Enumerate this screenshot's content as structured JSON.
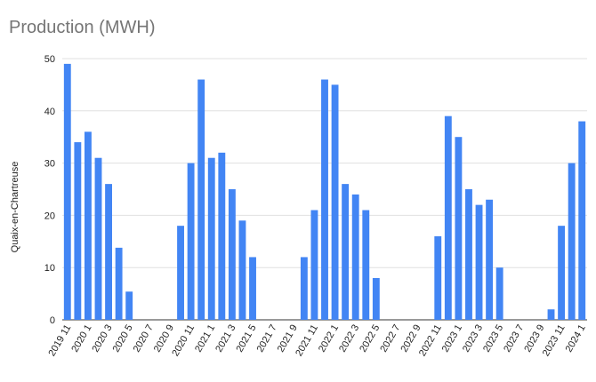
{
  "chart_data": {
    "type": "bar",
    "title": "Production (MWH)",
    "xlabel": "",
    "ylabel": "Quaix-en-Chartreuse",
    "ylim": [
      0,
      50
    ],
    "yticks": [
      0,
      10,
      20,
      30,
      40,
      50
    ],
    "grid": true,
    "legend": "none",
    "bar_color": "#4285f4",
    "categories": [
      "2019 11",
      "2019 12",
      "2020 1",
      "2020 2",
      "2020 3",
      "2020 4",
      "2020 5",
      "2020 6",
      "2020 7",
      "2020 8",
      "2020 9",
      "2020 10",
      "2020 11",
      "2020 12",
      "2021 1",
      "2021 2",
      "2021 3",
      "2021 4",
      "2021 5",
      "2021 6",
      "2021 7",
      "2021 8",
      "2021 9",
      "2021 10",
      "2021 11",
      "2021 12",
      "2022 1",
      "2022 2",
      "2022 3",
      "2022 4",
      "2022 5",
      "2022 6",
      "2022 7",
      "2022 8",
      "2022 9",
      "2022 10",
      "2022 11",
      "2022 12",
      "2023 1",
      "2023 2",
      "2023 3",
      "2023 4",
      "2023 5",
      "2023 6",
      "2023 7",
      "2023 8",
      "2023 9",
      "2023 10",
      "2023 11",
      "2023 12",
      "2024 1"
    ],
    "tick_labels": [
      "2019 11",
      "2020 1",
      "2020 3",
      "2020 5",
      "2020 7",
      "2020 9",
      "2020 11",
      "2021 1",
      "2021 3",
      "2021 5",
      "2021 7",
      "2021 9",
      "2021 11",
      "2022 1",
      "2022 3",
      "2022 5",
      "2022 7",
      "2022 9",
      "2022 11",
      "2023 1",
      "2023 3",
      "2023 5",
      "2023 7",
      "2023 9",
      "2023 11",
      "2024 1"
    ],
    "values": [
      49,
      34,
      36,
      31,
      26,
      13.8,
      5.4,
      0,
      0,
      0,
      0,
      18,
      30,
      46,
      31,
      32,
      25,
      19,
      12,
      0,
      0,
      0,
      0,
      12,
      21,
      46,
      45,
      26,
      24,
      21,
      8,
      0,
      0,
      0,
      0,
      0,
      16,
      39,
      35,
      25,
      22,
      23,
      10,
      0,
      0,
      0,
      0,
      2,
      18,
      30,
      38
    ]
  }
}
